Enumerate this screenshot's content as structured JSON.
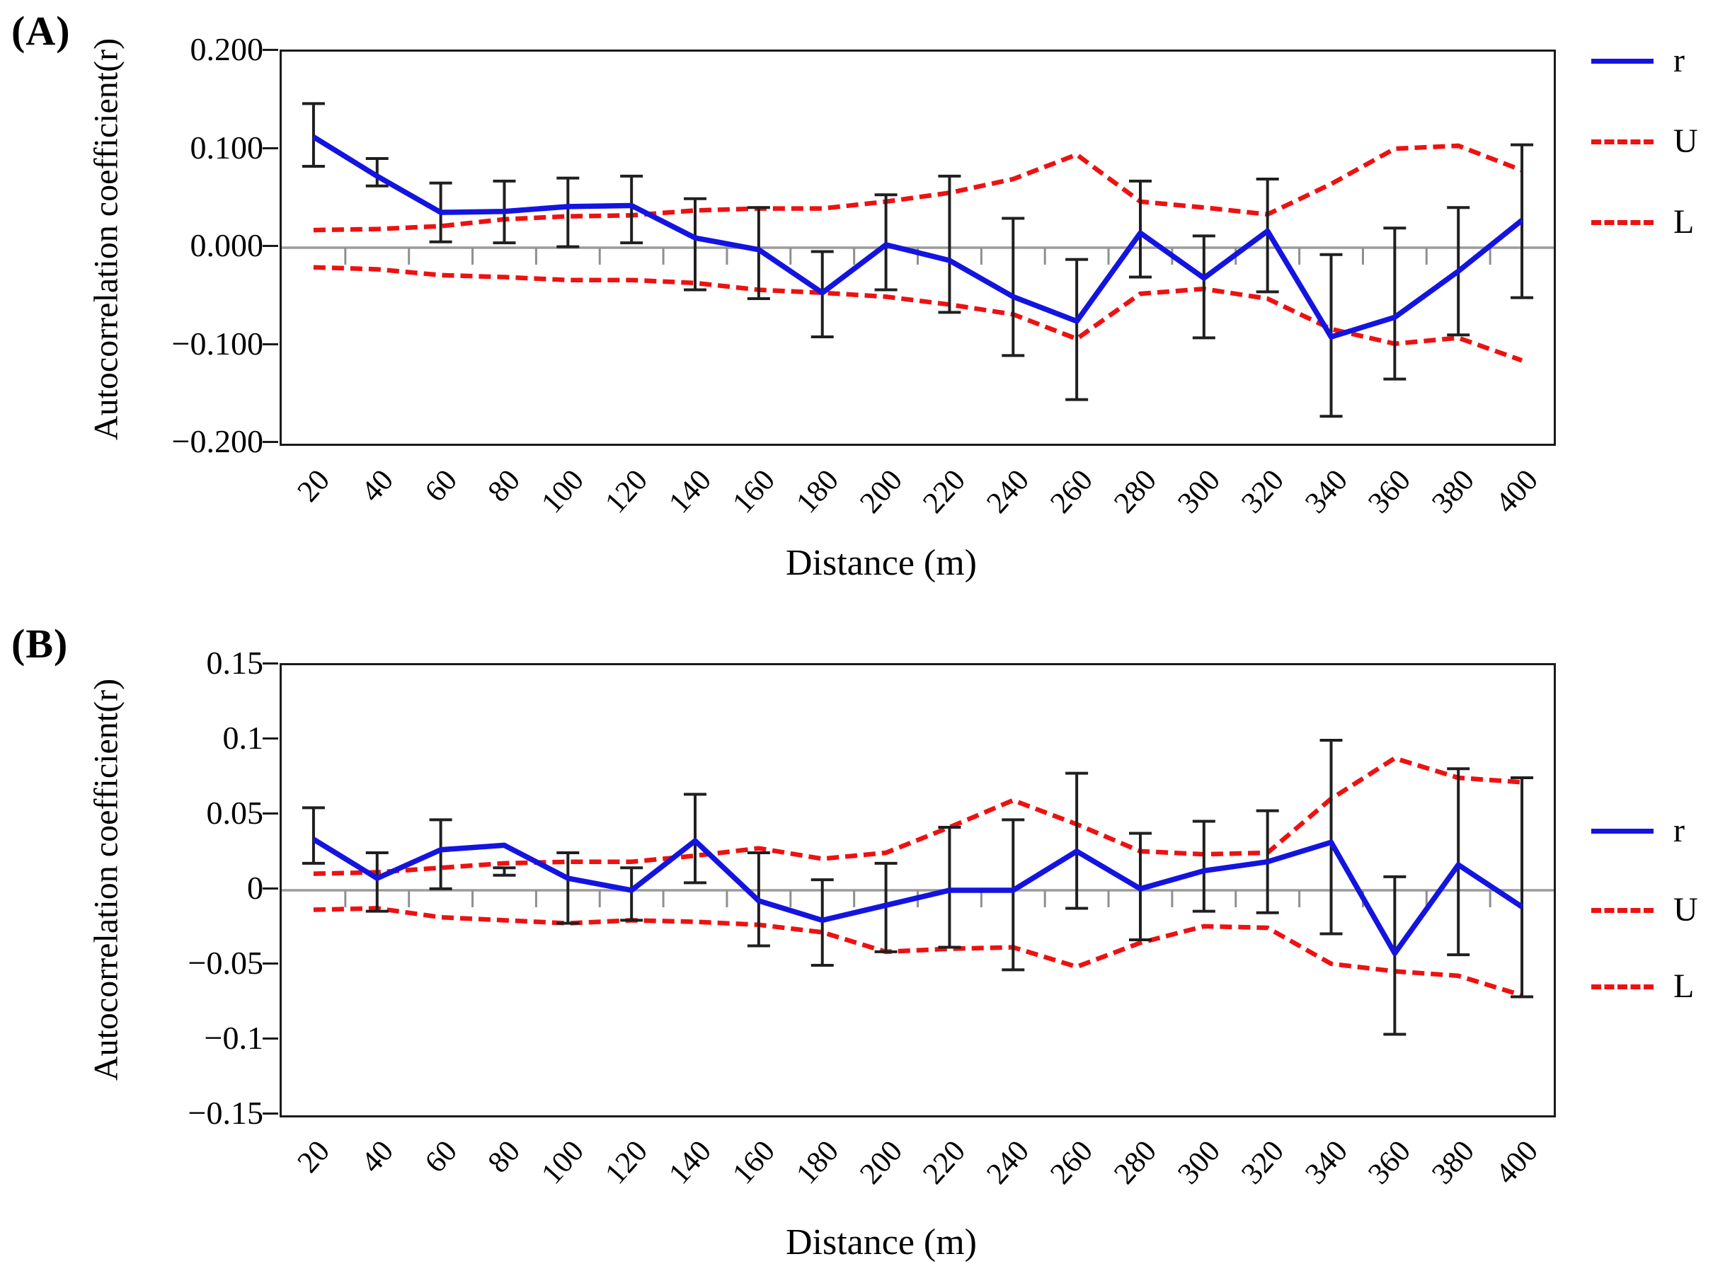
{
  "chart_data": [
    {
      "type": "line",
      "panel_label": "(A)",
      "xlabel": "Distance (m)",
      "ylabel": "Autocorrelation coefficient(r)",
      "x": [
        20,
        40,
        60,
        80,
        100,
        120,
        140,
        160,
        180,
        200,
        220,
        240,
        260,
        280,
        300,
        320,
        340,
        360,
        380,
        400
      ],
      "x_tick_labels": [
        "20",
        "40",
        "60",
        "80",
        "100",
        "120",
        "140",
        "160",
        "180",
        "200",
        "220",
        "240",
        "260",
        "280",
        "300",
        "320",
        "340",
        "360",
        "380",
        "400"
      ],
      "ylim": [
        -0.2,
        0.2
      ],
      "yticks": [
        0.2,
        0.1,
        0.0,
        -0.1,
        -0.2
      ],
      "y_tick_labels": [
        "0.200",
        "0.100",
        "0.000",
        "−0.100",
        "−0.200"
      ],
      "grid": "zero-line-only",
      "legend_position": "right-outside",
      "series": [
        {
          "name": "r",
          "style": "solid",
          "color": "#1414e0",
          "values": [
            0.113,
            0.073,
            0.036,
            0.037,
            0.042,
            0.043,
            0.01,
            -0.002,
            -0.046,
            0.003,
            -0.013,
            -0.05,
            -0.075,
            0.015,
            -0.031,
            0.017,
            -0.091,
            -0.071,
            -0.024,
            0.028
          ]
        },
        {
          "name": "U",
          "style": "dashed",
          "color": "#ee1111",
          "values": [
            0.018,
            0.019,
            0.022,
            0.029,
            0.032,
            0.033,
            0.038,
            0.04,
            0.04,
            0.047,
            0.056,
            0.07,
            0.095,
            0.047,
            0.041,
            0.034,
            0.065,
            0.101,
            0.104,
            0.079
          ]
        },
        {
          "name": "L",
          "style": "dashed",
          "color": "#ee1111",
          "values": [
            -0.02,
            -0.022,
            -0.028,
            -0.03,
            -0.033,
            -0.033,
            -0.036,
            -0.043,
            -0.046,
            -0.05,
            -0.058,
            -0.068,
            -0.093,
            -0.047,
            -0.042,
            -0.052,
            -0.083,
            -0.098,
            -0.092,
            -0.115
          ]
        }
      ],
      "error_bars": {
        "series": "r",
        "low": [
          0.083,
          0.063,
          0.006,
          0.005,
          0.001,
          0.005,
          -0.043,
          -0.052,
          -0.091,
          -0.043,
          -0.066,
          -0.11,
          -0.155,
          -0.03,
          -0.092,
          -0.045,
          -0.172,
          -0.134,
          -0.089,
          -0.051
        ],
        "high": [
          0.147,
          0.091,
          0.066,
          0.068,
          0.071,
          0.073,
          0.05,
          0.041,
          -0.004,
          0.054,
          0.073,
          0.03,
          -0.012,
          0.068,
          0.012,
          0.07,
          -0.007,
          0.02,
          0.041,
          0.105
        ]
      },
      "legend": [
        {
          "label": "r",
          "style": "solid-blue"
        },
        {
          "label": "U",
          "style": "dashed-red"
        },
        {
          "label": "L",
          "style": "dashed-red"
        }
      ]
    },
    {
      "type": "line",
      "panel_label": "(B)",
      "xlabel": "Distance (m)",
      "ylabel": "Autocorrelation coefficient(r)",
      "x": [
        20,
        40,
        60,
        80,
        100,
        120,
        140,
        160,
        180,
        200,
        220,
        240,
        260,
        280,
        300,
        320,
        340,
        360,
        380,
        400
      ],
      "x_tick_labels": [
        "20",
        "40",
        "60",
        "80",
        "100",
        "120",
        "140",
        "160",
        "180",
        "200",
        "220",
        "240",
        "260",
        "280",
        "300",
        "320",
        "340",
        "360",
        "380",
        "400"
      ],
      "ylim": [
        -0.15,
        0.15
      ],
      "yticks": [
        0.15,
        0.1,
        0.05,
        0.0,
        -0.05,
        -0.1,
        -0.15
      ],
      "y_tick_labels": [
        "0.15",
        "0.1",
        "0.05",
        "0",
        "−0.05",
        "−0.1",
        "−0.15"
      ],
      "grid": "zero-line-only",
      "legend_position": "right-outside",
      "series": [
        {
          "name": "r",
          "style": "solid",
          "color": "#1414e0",
          "values": [
            0.034,
            0.008,
            0.027,
            0.03,
            0.008,
            0.0,
            0.033,
            -0.007,
            -0.02,
            -0.01,
            0.0,
            0.0,
            0.026,
            0.001,
            0.013,
            0.019,
            0.032,
            -0.042,
            0.017,
            -0.011
          ]
        },
        {
          "name": "U",
          "style": "dashed",
          "color": "#ee1111",
          "values": [
            0.011,
            0.012,
            0.015,
            0.018,
            0.019,
            0.019,
            0.023,
            0.028,
            0.021,
            0.025,
            0.042,
            0.06,
            0.044,
            0.026,
            0.024,
            0.025,
            0.061,
            0.088,
            0.075,
            0.072
          ]
        },
        {
          "name": "L",
          "style": "dashed",
          "color": "#ee1111",
          "values": [
            -0.013,
            -0.012,
            -0.018,
            -0.02,
            -0.022,
            -0.02,
            -0.021,
            -0.023,
            -0.028,
            -0.041,
            -0.039,
            -0.038,
            -0.051,
            -0.035,
            -0.024,
            -0.025,
            -0.049,
            -0.054,
            -0.057,
            -0.07
          ]
        }
      ],
      "error_bars": {
        "series": "r",
        "low": [
          0.018,
          -0.014,
          0.001,
          0.01,
          -0.022,
          -0.02,
          0.005,
          -0.037,
          -0.05,
          -0.041,
          -0.038,
          -0.053,
          -0.012,
          -0.033,
          -0.014,
          -0.015,
          -0.029,
          -0.096,
          -0.043,
          -0.071
        ],
        "high": [
          0.055,
          0.025,
          0.047,
          0.015,
          0.025,
          0.015,
          0.064,
          0.025,
          0.007,
          0.018,
          0.042,
          0.047,
          0.078,
          0.038,
          0.046,
          0.053,
          0.1,
          0.009,
          0.081,
          0.075
        ]
      },
      "legend": [
        {
          "label": "r",
          "style": "solid-blue"
        },
        {
          "label": "U",
          "style": "dashed-red"
        },
        {
          "label": "L",
          "style": "dashed-red"
        }
      ]
    }
  ],
  "colors": {
    "series_r": "#1414e0",
    "series_bounds": "#ee1111",
    "error_bar": "#1f1f1f",
    "zero_line": "#9b9b9b",
    "axis_tick": "#8f8f8f",
    "box_border": "#1a1a1a",
    "text": "#000000"
  }
}
